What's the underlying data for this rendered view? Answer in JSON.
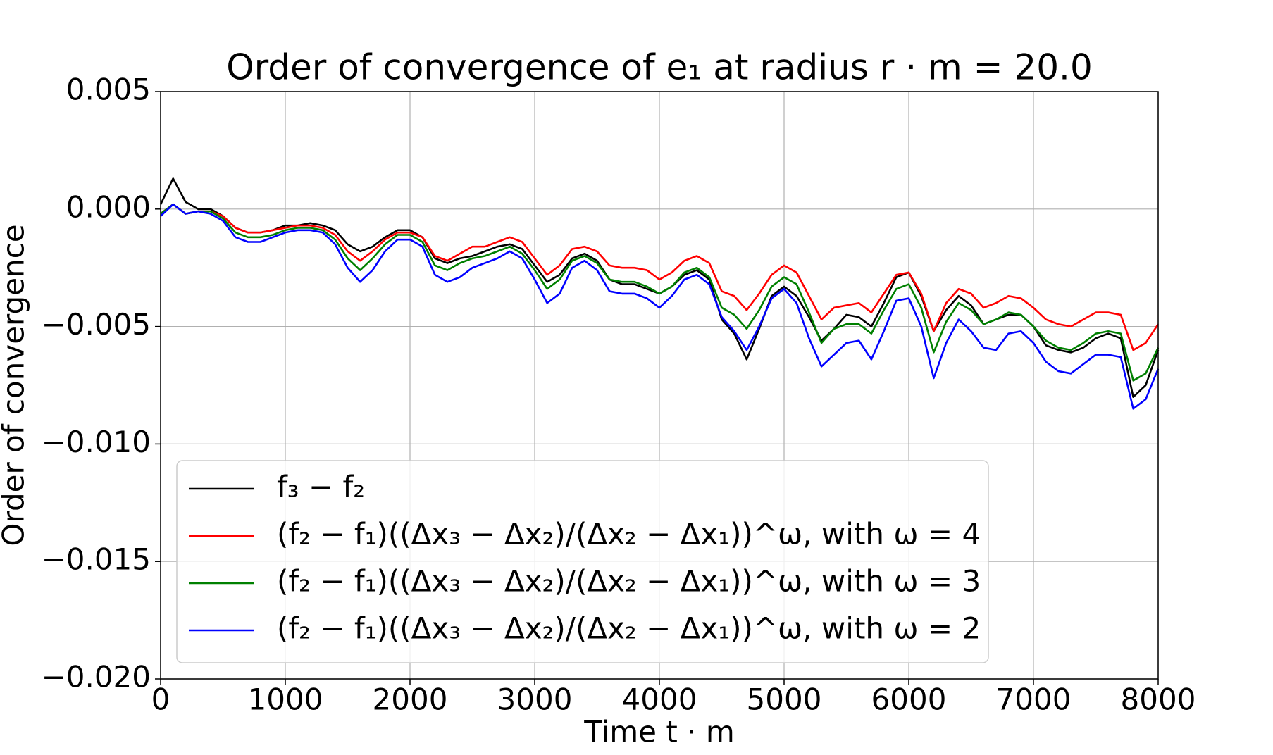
{
  "chart_data": {
    "type": "line",
    "title": "Order of convergence of e₁ at radius r · m = 20.0",
    "xlabel": "Time t · m",
    "ylabel": "Order of convergence",
    "x": [
      0,
      100,
      200,
      300,
      400,
      500,
      600,
      700,
      800,
      900,
      1000,
      1100,
      1200,
      1300,
      1400,
      1500,
      1600,
      1700,
      1800,
      1900,
      2000,
      2100,
      2200,
      2300,
      2400,
      2500,
      2600,
      2700,
      2800,
      2900,
      3000,
      3100,
      3200,
      3300,
      3400,
      3500,
      3600,
      3700,
      3800,
      3900,
      4000,
      4100,
      4200,
      4300,
      4400,
      4500,
      4600,
      4700,
      4800,
      4900,
      5000,
      5100,
      5200,
      5300,
      5400,
      5500,
      5600,
      5700,
      5800,
      5900,
      6000,
      6100,
      6200,
      6300,
      6400,
      6500,
      6600,
      6700,
      6800,
      6900,
      7000,
      7100,
      7200,
      7300,
      7400,
      7500,
      7600,
      7700,
      7800,
      7900,
      8000
    ],
    "series": [
      {
        "name": "f₃ − f₂",
        "color": "#000000",
        "values": [
          0.0002,
          0.0013,
          0.0003,
          0.0,
          0.0,
          -0.0003,
          -0.0008,
          -0.001,
          -0.001,
          -0.0009,
          -0.0007,
          -0.0007,
          -0.0006,
          -0.0007,
          -0.0009,
          -0.0015,
          -0.0018,
          -0.0016,
          -0.0012,
          -0.0009,
          -0.0009,
          -0.0012,
          -0.0021,
          -0.0023,
          -0.0021,
          -0.002,
          -0.0018,
          -0.0016,
          -0.0015,
          -0.0017,
          -0.0024,
          -0.0031,
          -0.0028,
          -0.0021,
          -0.0019,
          -0.0022,
          -0.003,
          -0.0032,
          -0.0032,
          -0.0034,
          -0.0036,
          -0.0033,
          -0.0028,
          -0.0026,
          -0.003,
          -0.0047,
          -0.0053,
          -0.0064,
          -0.0051,
          -0.0037,
          -0.0033,
          -0.0037,
          -0.0046,
          -0.0056,
          -0.0051,
          -0.0045,
          -0.0046,
          -0.005,
          -0.004,
          -0.0029,
          -0.0027,
          -0.0037,
          -0.0052,
          -0.0043,
          -0.0037,
          -0.0041,
          -0.0049,
          -0.0047,
          -0.0045,
          -0.0045,
          -0.005,
          -0.0058,
          -0.006,
          -0.0061,
          -0.0059,
          -0.0055,
          -0.0053,
          -0.0055,
          -0.008,
          -0.0075,
          -0.006
        ]
      },
      {
        "name": "(f₂ − f₁)((Δx₃ − Δx₂)/(Δx₂ − Δx₁))^ω, with ω = 4",
        "color": "#ff0000",
        "values": [
          -0.0002,
          0.0002,
          -0.0002,
          -0.0001,
          -0.0001,
          -0.0003,
          -0.0008,
          -0.001,
          -0.001,
          -0.0009,
          -0.0008,
          -0.0007,
          -0.0007,
          -0.0008,
          -0.0011,
          -0.0018,
          -0.0022,
          -0.0018,
          -0.0013,
          -0.001,
          -0.001,
          -0.0012,
          -0.002,
          -0.0022,
          -0.0019,
          -0.0016,
          -0.0016,
          -0.0014,
          -0.0012,
          -0.0014,
          -0.0021,
          -0.0028,
          -0.0024,
          -0.0017,
          -0.0016,
          -0.0018,
          -0.0024,
          -0.0025,
          -0.0025,
          -0.0026,
          -0.003,
          -0.0027,
          -0.0022,
          -0.002,
          -0.0023,
          -0.0035,
          -0.0037,
          -0.0043,
          -0.0036,
          -0.0028,
          -0.0024,
          -0.0027,
          -0.0037,
          -0.0047,
          -0.0042,
          -0.0041,
          -0.004,
          -0.0044,
          -0.0036,
          -0.0028,
          -0.0027,
          -0.0036,
          -0.0052,
          -0.004,
          -0.0034,
          -0.0036,
          -0.0042,
          -0.004,
          -0.0037,
          -0.0038,
          -0.0042,
          -0.0047,
          -0.0049,
          -0.005,
          -0.0047,
          -0.0044,
          -0.0044,
          -0.0045,
          -0.006,
          -0.0057,
          -0.0049
        ]
      },
      {
        "name": "(f₂ − f₁)((Δx₃ − Δx₂)/(Δx₂ − Δx₁))^ω, with ω = 3",
        "color": "#008000",
        "values": [
          -0.0002,
          0.0002,
          -0.0002,
          -0.0001,
          -0.0001,
          -0.0004,
          -0.001,
          -0.0012,
          -0.0012,
          -0.0011,
          -0.0009,
          -0.0008,
          -0.0008,
          -0.0009,
          -0.0013,
          -0.0021,
          -0.0026,
          -0.0021,
          -0.0015,
          -0.0011,
          -0.0011,
          -0.0014,
          -0.0024,
          -0.0026,
          -0.0023,
          -0.0021,
          -0.002,
          -0.0018,
          -0.0016,
          -0.0019,
          -0.0026,
          -0.0034,
          -0.003,
          -0.0022,
          -0.002,
          -0.0023,
          -0.003,
          -0.0031,
          -0.0031,
          -0.0033,
          -0.0036,
          -0.0033,
          -0.0027,
          -0.0025,
          -0.0029,
          -0.0042,
          -0.0045,
          -0.0051,
          -0.0043,
          -0.0033,
          -0.0029,
          -0.0032,
          -0.0044,
          -0.0057,
          -0.0051,
          -0.0049,
          -0.0049,
          -0.0053,
          -0.0043,
          -0.0034,
          -0.0032,
          -0.0042,
          -0.0061,
          -0.0048,
          -0.004,
          -0.0043,
          -0.0049,
          -0.0047,
          -0.0044,
          -0.0045,
          -0.005,
          -0.0056,
          -0.0059,
          -0.006,
          -0.0057,
          -0.0053,
          -0.0052,
          -0.0053,
          -0.0073,
          -0.007,
          -0.0059
        ]
      },
      {
        "name": "(f₂ − f₁)((Δx₃ − Δx₂)/(Δx₂ − Δx₁))^ω, with ω = 2",
        "color": "#0000ff",
        "values": [
          -0.0003,
          0.0002,
          -0.0002,
          -0.0001,
          -0.0002,
          -0.0005,
          -0.0012,
          -0.0014,
          -0.0014,
          -0.0012,
          -0.001,
          -0.0009,
          -0.0009,
          -0.001,
          -0.0015,
          -0.0025,
          -0.0031,
          -0.0026,
          -0.0018,
          -0.0013,
          -0.0013,
          -0.0016,
          -0.0028,
          -0.0031,
          -0.0029,
          -0.0025,
          -0.0023,
          -0.0021,
          -0.0018,
          -0.0021,
          -0.003,
          -0.004,
          -0.0036,
          -0.0025,
          -0.0022,
          -0.0026,
          -0.0035,
          -0.0036,
          -0.0036,
          -0.0038,
          -0.0042,
          -0.0037,
          -0.003,
          -0.0028,
          -0.0032,
          -0.0046,
          -0.0052,
          -0.006,
          -0.005,
          -0.0038,
          -0.0034,
          -0.004,
          -0.0055,
          -0.0067,
          -0.0062,
          -0.0057,
          -0.0056,
          -0.0064,
          -0.0052,
          -0.0039,
          -0.0038,
          -0.005,
          -0.0072,
          -0.0057,
          -0.0047,
          -0.0052,
          -0.0059,
          -0.006,
          -0.0053,
          -0.0052,
          -0.0057,
          -0.0065,
          -0.0069,
          -0.007,
          -0.0066,
          -0.0062,
          -0.0062,
          -0.0063,
          -0.0085,
          -0.0081,
          -0.0068
        ]
      }
    ],
    "xlim": [
      0,
      8000
    ],
    "xticks": [
      0,
      1000,
      2000,
      3000,
      4000,
      5000,
      6000,
      7000,
      8000
    ],
    "ylim": [
      -0.02,
      0.005
    ],
    "yticks": [
      {
        "value": -0.02,
        "label": "−0.020"
      },
      {
        "value": -0.015,
        "label": "−0.015"
      },
      {
        "value": -0.01,
        "label": "−0.010"
      },
      {
        "value": -0.005,
        "label": "−0.005"
      },
      {
        "value": 0,
        "label": "0.000"
      },
      0.005
    ],
    "grid": true,
    "legend": "lower left"
  }
}
